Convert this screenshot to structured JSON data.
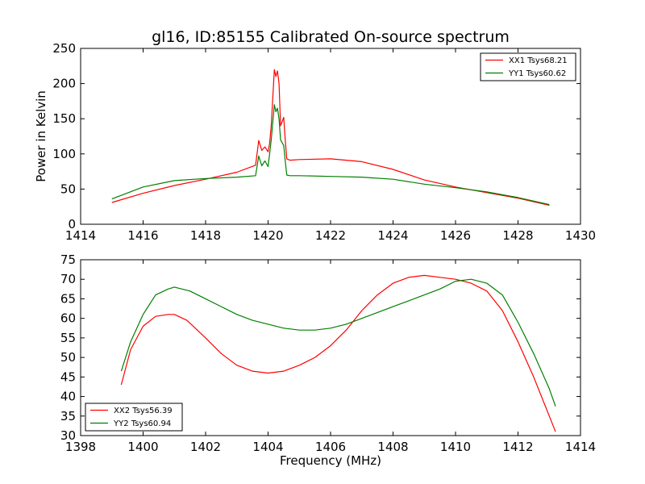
{
  "chart_data": [
    {
      "type": "line",
      "title": "gl16, ID:85155 Calibrated On-source spectrum",
      "xlabel": "",
      "ylabel": "Power in Kelvin",
      "xlim": [
        1414,
        1430
      ],
      "ylim": [
        0,
        250
      ],
      "xticks": [
        1414,
        1416,
        1418,
        1420,
        1422,
        1424,
        1426,
        1428,
        1430
      ],
      "yticks": [
        0,
        50,
        100,
        150,
        200,
        250
      ],
      "grid": false,
      "legend_position": "top-right",
      "series": [
        {
          "name": "XX1 Tsys68.21",
          "color": "#ff0000",
          "x": [
            1415.0,
            1416.0,
            1417.0,
            1418.0,
            1419.0,
            1419.6,
            1419.7,
            1419.8,
            1419.9,
            1420.0,
            1420.05,
            1420.1,
            1420.2,
            1420.25,
            1420.3,
            1420.35,
            1420.4,
            1420.5,
            1420.55,
            1420.6,
            1420.7,
            1421.0,
            1422.0,
            1423.0,
            1424.0,
            1425.0,
            1426.0,
            1427.0,
            1428.0,
            1429.0
          ],
          "y": [
            31,
            44,
            55,
            64,
            74,
            84,
            119,
            105,
            110,
            103,
            115,
            140,
            220,
            210,
            218,
            200,
            140,
            152,
            120,
            93,
            91,
            92,
            93,
            89,
            78,
            63,
            53,
            45,
            37,
            27
          ]
        },
        {
          "name": "YY1 Tsys60.62",
          "color": "#008000",
          "x": [
            1415.0,
            1416.0,
            1417.0,
            1418.0,
            1419.0,
            1419.6,
            1419.7,
            1419.8,
            1419.9,
            1420.0,
            1420.05,
            1420.1,
            1420.2,
            1420.25,
            1420.3,
            1420.35,
            1420.4,
            1420.5,
            1420.55,
            1420.6,
            1420.7,
            1421.0,
            1422.0,
            1423.0,
            1424.0,
            1425.0,
            1426.0,
            1427.0,
            1428.0,
            1429.0
          ],
          "y": [
            36,
            53,
            62,
            65,
            67,
            69,
            97,
            83,
            90,
            82,
            100,
            120,
            170,
            160,
            165,
            150,
            120,
            112,
            90,
            70,
            69,
            69,
            68,
            67,
            64,
            57,
            52,
            46,
            38,
            28
          ]
        }
      ]
    },
    {
      "type": "line",
      "title": "",
      "xlabel": "Frequency (MHz)",
      "ylabel": "",
      "xlim": [
        1398,
        1414
      ],
      "ylim": [
        30,
        75
      ],
      "xticks": [
        1398,
        1400,
        1402,
        1404,
        1406,
        1408,
        1410,
        1412,
        1414
      ],
      "yticks": [
        30,
        35,
        40,
        45,
        50,
        55,
        60,
        65,
        70,
        75
      ],
      "grid": false,
      "legend_position": "bottom-left",
      "series": [
        {
          "name": "XX2 Tsys56.39",
          "color": "#ff0000",
          "x": [
            1399.3,
            1399.6,
            1400.0,
            1400.4,
            1400.8,
            1401.0,
            1401.4,
            1402.0,
            1402.5,
            1403.0,
            1403.5,
            1404.0,
            1404.5,
            1405.0,
            1405.5,
            1406.0,
            1406.5,
            1407.0,
            1407.5,
            1408.0,
            1408.5,
            1409.0,
            1409.5,
            1410.0,
            1410.5,
            1411.0,
            1411.5,
            1412.0,
            1412.5,
            1413.0,
            1413.2
          ],
          "y": [
            43,
            52,
            58,
            60.5,
            61,
            61,
            59.5,
            55,
            51,
            48,
            46.5,
            46,
            46.5,
            48,
            50,
            53,
            57,
            62,
            66,
            69,
            70.5,
            71,
            70.5,
            70,
            69,
            67,
            62,
            54,
            45,
            35,
            31
          ]
        },
        {
          "name": "YY2 Tsys60.94",
          "color": "#008000",
          "x": [
            1399.3,
            1399.6,
            1400.0,
            1400.4,
            1400.8,
            1401.0,
            1401.5,
            1402.0,
            1402.5,
            1403.0,
            1403.5,
            1404.0,
            1404.5,
            1405.0,
            1405.5,
            1406.0,
            1406.5,
            1407.0,
            1407.5,
            1408.0,
            1408.5,
            1409.0,
            1409.5,
            1410.0,
            1410.5,
            1411.0,
            1411.5,
            1412.0,
            1412.5,
            1413.0,
            1413.2
          ],
          "y": [
            46.5,
            54,
            61,
            66,
            67.5,
            68,
            67,
            65,
            63,
            61,
            59.5,
            58.5,
            57.5,
            57,
            57,
            57.5,
            58.5,
            60,
            61.5,
            63,
            64.5,
            66,
            67.5,
            69.5,
            70,
            69,
            66,
            59,
            51,
            42,
            37.5
          ]
        }
      ]
    }
  ]
}
